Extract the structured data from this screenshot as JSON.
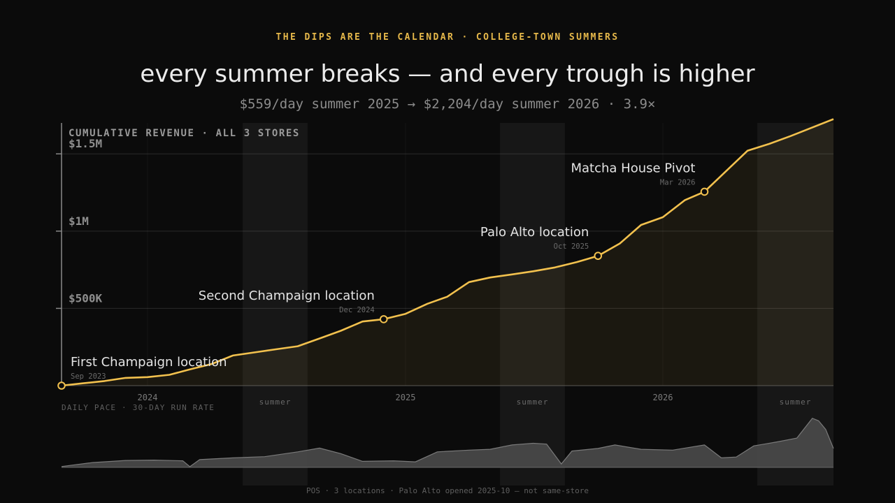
{
  "header": {
    "kicker": "THE DIPS ARE THE CALENDAR · COLLEGE-TOWN SUMMERS",
    "title": "every summer breaks — and every trough is higher",
    "subtitle": "$559/day summer 2025 → $2,204/day summer 2026 · 3.9×"
  },
  "footer": {
    "note": "POS · 3 locations · Palo Alto opened 2025-10 — not same-store"
  },
  "colors": {
    "accent": "#f2c14e",
    "background": "#0b0b0b",
    "pace_fill": "#4a4a4a"
  },
  "chart_data": [
    {
      "type": "area",
      "title": "CUMULATIVE REVENUE · ALL 3 STORES",
      "xlabel": "",
      "ylabel": "",
      "xlim": [
        "2023-09-01",
        "2026-08-31"
      ],
      "ylim": [
        0,
        1700000
      ],
      "x_ticks": [
        {
          "date": "2024-01-01",
          "label": "2024"
        },
        {
          "date": "2025-01-01",
          "label": "2025"
        },
        {
          "date": "2026-01-01",
          "label": "2026"
        }
      ],
      "y_ticks": [
        {
          "value": 500000,
          "label": "$500K"
        },
        {
          "value": 1000000,
          "label": "$1M"
        },
        {
          "value": 1500000,
          "label": "$1.5M"
        }
      ],
      "grid": true,
      "shaded_periods": [
        {
          "start": "2024-05-15",
          "end": "2024-08-15",
          "label": "summer"
        },
        {
          "start": "2025-05-15",
          "end": "2025-08-15",
          "label": "summer"
        },
        {
          "start": "2026-05-15",
          "end": "2026-08-31",
          "label": "summer"
        }
      ],
      "series": [
        {
          "points": [
            [
              "2023-09-01",
              0
            ],
            [
              "2023-10-01",
              15000
            ],
            [
              "2023-11-01",
              30000
            ],
            [
              "2023-12-01",
              50000
            ],
            [
              "2024-01-01",
              55000
            ],
            [
              "2024-02-01",
              70000
            ],
            [
              "2024-03-01",
              105000
            ],
            [
              "2024-04-01",
              140000
            ],
            [
              "2024-05-01",
              195000
            ],
            [
              "2024-06-01",
              215000
            ],
            [
              "2024-07-01",
              235000
            ],
            [
              "2024-08-01",
              255000
            ],
            [
              "2024-09-01",
              305000
            ],
            [
              "2024-10-01",
              355000
            ],
            [
              "2024-11-01",
              415000
            ],
            [
              "2024-12-01",
              430000
            ],
            [
              "2025-01-01",
              465000
            ],
            [
              "2025-02-01",
              530000
            ],
            [
              "2025-03-01",
              575000
            ],
            [
              "2025-04-01",
              670000
            ],
            [
              "2025-05-01",
              700000
            ],
            [
              "2025-06-01",
              720000
            ],
            [
              "2025-07-01",
              740000
            ],
            [
              "2025-08-01",
              765000
            ],
            [
              "2025-09-01",
              800000
            ],
            [
              "2025-10-01",
              840000
            ],
            [
              "2025-11-01",
              920000
            ],
            [
              "2025-12-01",
              1040000
            ],
            [
              "2026-01-01",
              1090000
            ],
            [
              "2026-02-01",
              1200000
            ],
            [
              "2026-03-01",
              1255000
            ],
            [
              "2026-04-01",
              1390000
            ],
            [
              "2026-05-01",
              1520000
            ],
            [
              "2026-06-01",
              1565000
            ],
            [
              "2026-07-01",
              1615000
            ],
            [
              "2026-08-31",
              1725000
            ]
          ]
        }
      ],
      "annotations": [
        {
          "date": "2023-09-01",
          "value": 0,
          "label": "First Champaign location",
          "sublabel": "Sep 2023"
        },
        {
          "date": "2024-12-01",
          "value": 430000,
          "label": "Second Champaign location",
          "sublabel": "Dec 2024"
        },
        {
          "date": "2025-10-01",
          "value": 840000,
          "label": "Palo Alto location",
          "sublabel": "Oct 2025"
        },
        {
          "date": "2026-03-01",
          "value": 1255000,
          "label": "Matcha House Pivot",
          "sublabel": "Mar 2026"
        }
      ]
    },
    {
      "type": "area",
      "title": "DAILY PACE · 30-DAY RUN RATE",
      "xlim": [
        "2023-09-01",
        "2026-08-31"
      ],
      "ylim": [
        0,
        3000
      ],
      "series": [
        {
          "points": [
            [
              "2023-09-01",
              50
            ],
            [
              "2023-10-15",
              280
            ],
            [
              "2023-12-01",
              400
            ],
            [
              "2024-01-10",
              420
            ],
            [
              "2024-02-20",
              380
            ],
            [
              "2024-03-01",
              40
            ],
            [
              "2024-03-15",
              450
            ],
            [
              "2024-05-01",
              550
            ],
            [
              "2024-06-15",
              620
            ],
            [
              "2024-08-01",
              900
            ],
            [
              "2024-09-01",
              1120
            ],
            [
              "2024-10-01",
              800
            ],
            [
              "2024-11-01",
              350
            ],
            [
              "2024-12-15",
              380
            ],
            [
              "2025-01-15",
              320
            ],
            [
              "2025-02-15",
              900
            ],
            [
              "2025-04-01",
              1000
            ],
            [
              "2025-05-01",
              1050
            ],
            [
              "2025-06-01",
              1300
            ],
            [
              "2025-07-01",
              1400
            ],
            [
              "2025-07-20",
              1350
            ],
            [
              "2025-08-10",
              200
            ],
            [
              "2025-08-25",
              950
            ],
            [
              "2025-10-01",
              1100
            ],
            [
              "2025-10-25",
              1300
            ],
            [
              "2025-12-01",
              1050
            ],
            [
              "2026-01-15",
              1000
            ],
            [
              "2026-03-01",
              1300
            ],
            [
              "2026-03-25",
              550
            ],
            [
              "2026-04-15",
              600
            ],
            [
              "2026-05-10",
              1250
            ],
            [
              "2026-05-25",
              1350
            ],
            [
              "2026-06-15",
              1500
            ],
            [
              "2026-07-10",
              1700
            ],
            [
              "2026-08-01",
              2850
            ],
            [
              "2026-08-10",
              2700
            ],
            [
              "2026-08-20",
              2200
            ],
            [
              "2026-08-31",
              1100
            ]
          ]
        }
      ]
    }
  ]
}
